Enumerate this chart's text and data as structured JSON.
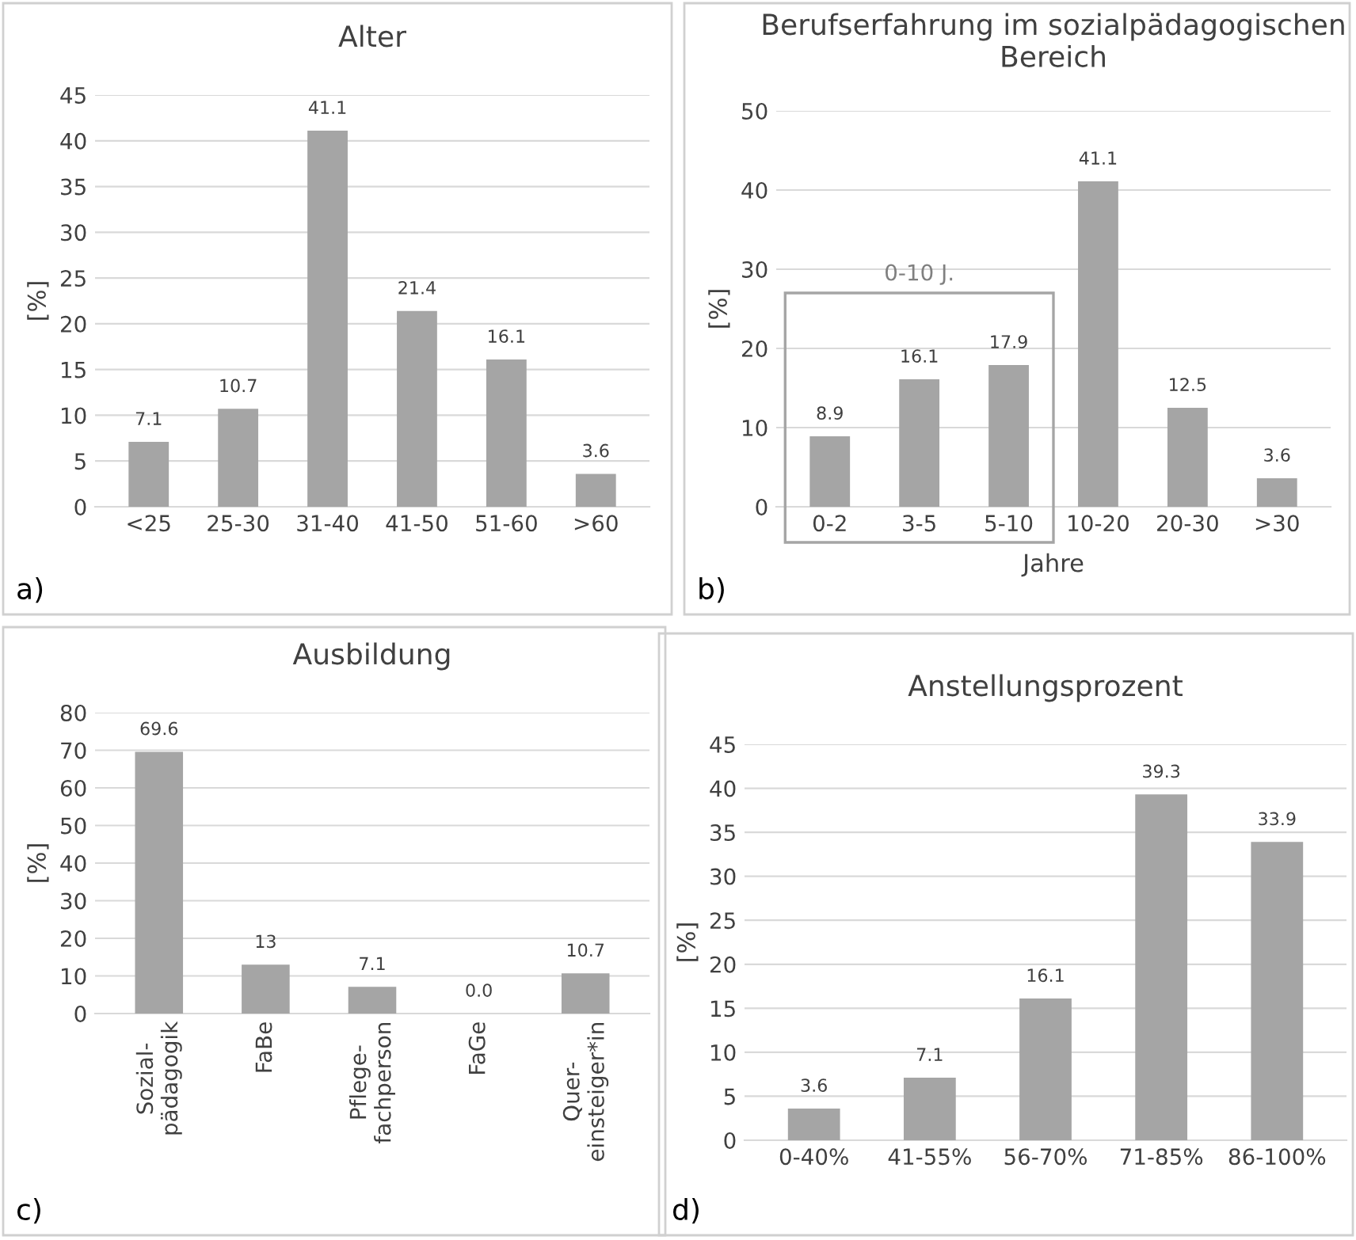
{
  "chart_data": [
    {
      "type": "bar",
      "title": "Alter",
      "ylabel": "[%]",
      "categories": [
        "<25",
        "25-30",
        "31-40",
        "41-50",
        "51-60",
        ">60"
      ],
      "values": [
        7.1,
        10.7,
        41.1,
        21.4,
        16.1,
        3.6
      ],
      "value_labels": [
        "7.1",
        "10.7",
        "41.1",
        "21.4",
        "16.1",
        "3.6"
      ],
      "color": "#a5a5a5",
      "ylim": [
        0,
        45
      ],
      "yticks": [
        0,
        5,
        10,
        15,
        20,
        25,
        30,
        35,
        40,
        45
      ],
      "grid": "y",
      "annotations": [
        "a)"
      ]
    },
    {
      "type": "bar",
      "title": "Berufserfahrung im sozialpädagogischen Bereich",
      "ylabel": "[%]",
      "xlabel": "Jahre",
      "categories": [
        "0-2",
        "3-5",
        "5-10",
        "10-20",
        "20-30",
        ">30"
      ],
      "values": [
        8.9,
        16.1,
        17.9,
        41.1,
        12.5,
        3.6
      ],
      "value_labels": [
        "8.9",
        "16.1",
        "17.9",
        "41.1",
        "12.5",
        "3.6"
      ],
      "color": "#a5a5a5",
      "ylim": [
        0,
        50
      ],
      "yticks": [
        0,
        10,
        20,
        30,
        40,
        50
      ],
      "grid": "y",
      "annotations": [
        "b)",
        "0-10 J."
      ]
    },
    {
      "type": "bar",
      "title": "Ausbildung",
      "ylabel": "[%]",
      "categories": [
        "Sozial-\npädagogik",
        "FaBe",
        "Pflege-\nfachperson",
        "FaGe",
        "Quer-\neinsteiger*in"
      ],
      "values": [
        69.6,
        13,
        7.1,
        0.0,
        10.7
      ],
      "value_labels": [
        "69.6",
        "13",
        "7.1",
        "0.0",
        "10.7"
      ],
      "color": "#a5a5a5",
      "ylim": [
        0,
        80
      ],
      "yticks": [
        0,
        10,
        20,
        30,
        40,
        50,
        60,
        70,
        80
      ],
      "grid": "y",
      "annotations": [
        "c)"
      ]
    },
    {
      "type": "bar",
      "title": "Anstellungsprozent",
      "ylabel": "[%]",
      "categories": [
        "0-40%",
        "41-55%",
        "56-70%",
        "71-85%",
        "86-100%"
      ],
      "values": [
        3.6,
        7.1,
        16.1,
        39.3,
        33.9
      ],
      "value_labels": [
        "3.6",
        "7.1",
        "16.1",
        "39.3",
        "33.9"
      ],
      "color": "#a5a5a5",
      "ylim": [
        0,
        45
      ],
      "yticks": [
        0,
        5,
        10,
        15,
        20,
        25,
        30,
        35,
        40,
        45
      ],
      "grid": "y",
      "annotations": [
        "d)"
      ]
    }
  ]
}
